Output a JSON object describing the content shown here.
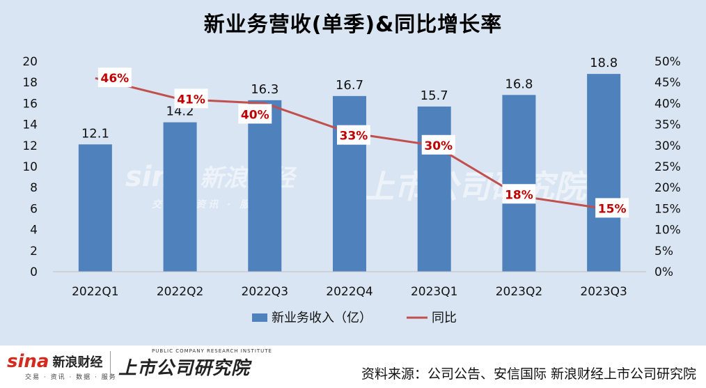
{
  "title": "新业务营收(单季)&同比增长率",
  "chart_data": {
    "type": "bar",
    "categories": [
      "2022Q1",
      "2022Q2",
      "2022Q3",
      "2022Q4",
      "2023Q1",
      "2023Q2",
      "2023Q3"
    ],
    "series": [
      {
        "name": "新业务收入（亿）",
        "type": "bar",
        "axis": "left",
        "values": [
          12.1,
          14.2,
          16.3,
          16.7,
          15.7,
          16.8,
          18.8
        ],
        "color": "#4f81bd"
      },
      {
        "name": "同比",
        "type": "line",
        "axis": "right",
        "values": [
          46,
          41,
          40,
          33,
          30,
          18,
          15
        ],
        "unit": "%",
        "color": "#c0504d"
      }
    ],
    "left_axis": {
      "min": 0,
      "max": 20,
      "step": 2,
      "ticks": [
        "0",
        "2",
        "4",
        "6",
        "8",
        "10",
        "12",
        "14",
        "16",
        "18",
        "20"
      ]
    },
    "right_axis": {
      "min": 0,
      "max": 50,
      "step": 5,
      "ticks": [
        "0%",
        "5%",
        "10%",
        "15%",
        "20%",
        "25%",
        "30%",
        "35%",
        "40%",
        "45%",
        "50%"
      ]
    },
    "bar_labels": [
      "12.1",
      "14.2",
      "16.3",
      "16.7",
      "15.7",
      "16.8",
      "18.8"
    ],
    "line_labels": [
      "46%",
      "41%",
      "40%",
      "33%",
      "30%",
      "18%",
      "15%"
    ],
    "legend_position": "bottom",
    "grid": false
  },
  "watermark": {
    "brand_latin": "sina",
    "brand_cn": "新浪财经",
    "brand_sub": "交易 · 资讯 · 服务",
    "brand2_cn": "上市公司研究院"
  },
  "footer": {
    "logo_mark": "sina",
    "logo_name": "新浪财经",
    "logo_tagline": "交易 · 资讯 · 数据 · 服务",
    "logo2_en": "PUBLIC COMPANY RESEARCH INSTITUTE",
    "logo2_cn": "上市公司研究院",
    "source": "资料来源：公司公告、安信国际 新浪财经上市公司研究院"
  }
}
